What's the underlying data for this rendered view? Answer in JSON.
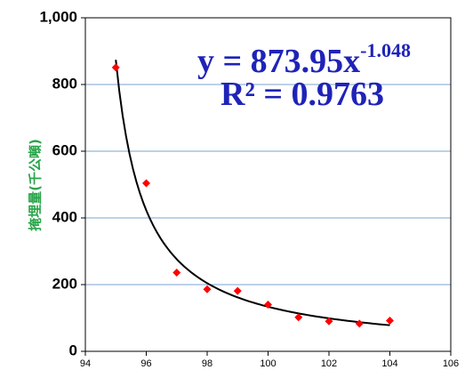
{
  "chart_data": {
    "type": "scatter",
    "title": "",
    "xlabel": "",
    "ylabel": "掩埋量(千公噸)",
    "xlim": [
      94,
      106
    ],
    "ylim": [
      0,
      1000
    ],
    "x_ticks": [
      "94",
      "96",
      "98",
      "100",
      "102",
      "104",
      "106"
    ],
    "x_tick_values": [
      94,
      96,
      98,
      100,
      102,
      104,
      106
    ],
    "y_ticks": [
      "0",
      "200",
      "400",
      "600",
      "800",
      "1,000"
    ],
    "y_tick_values": [
      0,
      200,
      400,
      600,
      800,
      1000
    ],
    "grid": "horizontal",
    "legend": "none",
    "series": [
      {
        "x": [
          95,
          96,
          97,
          98,
          99,
          100,
          101,
          102,
          103,
          104
        ],
        "y": [
          851,
          504,
          236,
          186,
          181,
          140,
          102,
          90,
          83,
          92
        ]
      }
    ],
    "trendline": {
      "type": "power",
      "coefficient": 873.95,
      "exponent": -1.048,
      "x_start": 95,
      "x_end": 104,
      "equation_base": "y = 873.95x",
      "equation_exponent": "-1.048",
      "r_squared_label": "R² = 0.9763"
    },
    "colors": {
      "marker": "#ff0000",
      "trendline": "#000000",
      "gridline": "#7ba3d0",
      "annotation": "#1f23b8",
      "ylabel": "#2aa54a",
      "axis": "#000000"
    }
  }
}
